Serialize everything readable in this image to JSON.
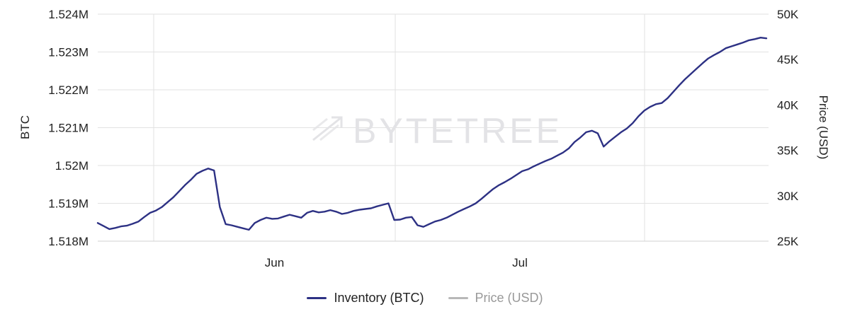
{
  "watermark": {
    "brand": "BYTETREE"
  },
  "colors": {
    "inventory": "#2d3184",
    "price": "#b8b8b8",
    "grid": "#e2e2e2"
  },
  "legend": [
    {
      "label": "Inventory (BTC)",
      "color": "#2d3184",
      "active": true
    },
    {
      "label": "Price (USD)",
      "color": "#b8b8b8",
      "active": false
    }
  ],
  "chart_data": {
    "type": "line",
    "x_tick_labels": [
      "Jun",
      "Jul"
    ],
    "left_axis": {
      "title": "BTC",
      "ticks": [
        "1.518M",
        "1.519M",
        "1.52M",
        "1.521M",
        "1.522M",
        "1.523M",
        "1.524M"
      ],
      "ylim": [
        1518000,
        1524000
      ]
    },
    "right_axis": {
      "title": "Price (USD)",
      "ticks": [
        "25K",
        "30K",
        "35K",
        "40K",
        "45K",
        "50K"
      ],
      "ylim": [
        25000,
        50000
      ]
    },
    "grid": true,
    "legend_position": "bottom",
    "series": [
      {
        "name": "Inventory (BTC)",
        "axis": "left",
        "values": [
          1518480,
          1518400,
          1518320,
          1518350,
          1518390,
          1518410,
          1518460,
          1518520,
          1518640,
          1518750,
          1518810,
          1518900,
          1519030,
          1519160,
          1519320,
          1519480,
          1519620,
          1519780,
          1519860,
          1519920,
          1519870,
          1518900,
          1518450,
          1518420,
          1518380,
          1518340,
          1518300,
          1518480,
          1518560,
          1518620,
          1518590,
          1518600,
          1518650,
          1518700,
          1518660,
          1518620,
          1518750,
          1518800,
          1518760,
          1518780,
          1518820,
          1518780,
          1518720,
          1518750,
          1518800,
          1518830,
          1518850,
          1518870,
          1518920,
          1518960,
          1519000,
          1518560,
          1518570,
          1518620,
          1518640,
          1518420,
          1518380,
          1518450,
          1518520,
          1518560,
          1518620,
          1518700,
          1518780,
          1518850,
          1518920,
          1519000,
          1519120,
          1519250,
          1519380,
          1519480,
          1519560,
          1519650,
          1519750,
          1519850,
          1519900,
          1519980,
          1520050,
          1520120,
          1520180,
          1520260,
          1520340,
          1520450,
          1520620,
          1520740,
          1520880,
          1520920,
          1520850,
          1520500,
          1520640,
          1520760,
          1520880,
          1520980,
          1521120,
          1521300,
          1521450,
          1521550,
          1521620,
          1521650,
          1521780,
          1521950,
          1522120,
          1522280,
          1522420,
          1522560,
          1522700,
          1522830,
          1522920,
          1523000,
          1523100,
          1523150,
          1523200,
          1523250,
          1523310,
          1523340,
          1523380,
          1523360
        ]
      }
    ]
  }
}
